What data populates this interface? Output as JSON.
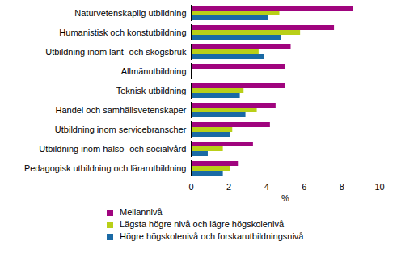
{
  "chart_data": {
    "type": "bar",
    "orientation": "horizontal",
    "categories": [
      "Naturvetenskaplig utbildning",
      "Humanistisk och konstutbildning",
      "Utbildning inom lant- och skogsbruk",
      "Allmänutbildning",
      "Teknisk utbildning",
      "Handel och samhällsvetenskaper",
      "Utbildning inom servicebranscher",
      "Utbildning inom hälso- och socialvård",
      "Pedagogisk utbildning och lärarutbildning"
    ],
    "series": [
      {
        "name": "Mellannivå",
        "color": "#a0047e",
        "values": [
          8.6,
          7.6,
          5.3,
          5.0,
          5.0,
          4.5,
          4.2,
          3.3,
          2.5
        ]
      },
      {
        "name": "Lägsta högre nivå och lägre högskolenivå",
        "color": "#b9cf18",
        "values": [
          4.7,
          5.8,
          3.6,
          null,
          2.8,
          3.5,
          2.2,
          1.7,
          2.1
        ]
      },
      {
        "name": "Högre högskolenivå och forskarutbildningsnivå",
        "color": "#1a6aa5",
        "values": [
          4.1,
          4.8,
          3.9,
          null,
          2.6,
          2.9,
          2.1,
          0.9,
          1.7
        ]
      }
    ],
    "x_label": "%",
    "xlim": [
      0,
      10
    ],
    "xticks": [
      0,
      2,
      4,
      6,
      8,
      10
    ],
    "grid": false,
    "legend": "bottom"
  }
}
